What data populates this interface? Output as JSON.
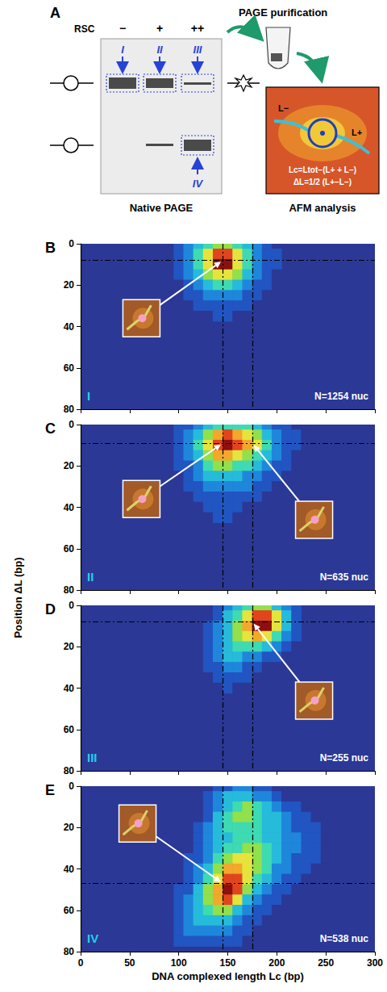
{
  "panel_a": {
    "letter": "A",
    "rsc": "RSC",
    "lanes": [
      "−",
      "+",
      "++"
    ],
    "bands": [
      "I",
      "II",
      "III",
      "IV"
    ],
    "purification": "PAGE purification",
    "gel_caption": "Native PAGE",
    "afm_caption": "AFM analysis",
    "afm_labels": [
      "L−",
      "L+"
    ],
    "formulas": [
      "Lc=Ltot−(L+ + L−)",
      "ΔL=1/2 (L+−L−)"
    ]
  },
  "ylabel": "Position ΔL (bp)",
  "chart_data": [
    {
      "type": "heatmap",
      "panel": "B",
      "lane": "I",
      "n_label": "N=1254 nuc",
      "tick_labels": "y",
      "xlim": [
        0,
        300
      ],
      "xticks": [
        0,
        50,
        100,
        150,
        200,
        250,
        300
      ],
      "ylim": [
        0,
        80
      ],
      "yticks": [
        0,
        20,
        40,
        60,
        80
      ],
      "guides": {
        "x": [
          145,
          175
        ],
        "y": 8
      },
      "zlim": [
        0,
        9
      ],
      "cells": {
        "x": [
          100,
          110,
          120,
          130,
          140,
          150,
          160,
          170,
          180,
          190,
          200
        ],
        "y": [
          0,
          5,
          10,
          15,
          20,
          25,
          30,
          35
        ],
        "z": [
          [
            1,
            2,
            3,
            4,
            5,
            5,
            4,
            3,
            2,
            1,
            0
          ],
          [
            1,
            2,
            4,
            6,
            8,
            8,
            6,
            4,
            2,
            1,
            1
          ],
          [
            1,
            2,
            4,
            6,
            9,
            9,
            6,
            4,
            2,
            1,
            1
          ],
          [
            1,
            2,
            3,
            5,
            6,
            6,
            5,
            3,
            2,
            1,
            0
          ],
          [
            0,
            1,
            2,
            3,
            4,
            4,
            3,
            2,
            1,
            1,
            0
          ],
          [
            0,
            1,
            1,
            2,
            2,
            2,
            2,
            1,
            1,
            0,
            0
          ],
          [
            0,
            0,
            1,
            1,
            1,
            1,
            1,
            1,
            0,
            0,
            0
          ],
          [
            0,
            0,
            0,
            0,
            1,
            1,
            0,
            0,
            0,
            0,
            0
          ]
        ]
      }
    },
    {
      "type": "heatmap",
      "panel": "C",
      "lane": "II",
      "n_label": "N=635 nuc",
      "tick_labels": "y",
      "xlim": [
        0,
        300
      ],
      "xticks": [
        0,
        50,
        100,
        150,
        200,
        250,
        300
      ],
      "ylim": [
        0,
        80
      ],
      "yticks": [
        0,
        20,
        40,
        60,
        80
      ],
      "guides": {
        "x": [
          145,
          175
        ],
        "y": 9
      },
      "zlim": [
        0,
        9
      ],
      "cells": {
        "x": [
          100,
          110,
          120,
          130,
          140,
          150,
          160,
          170,
          180,
          190,
          200,
          210,
          220,
          230
        ],
        "y": [
          0,
          5,
          10,
          15,
          20,
          25,
          30,
          35,
          40,
          45
        ],
        "z": [
          [
            1,
            1,
            2,
            3,
            4,
            4,
            4,
            4,
            3,
            2,
            1,
            1,
            0,
            0
          ],
          [
            1,
            2,
            3,
            5,
            7,
            8,
            7,
            6,
            5,
            3,
            2,
            1,
            1,
            0
          ],
          [
            1,
            2,
            4,
            6,
            8,
            9,
            8,
            7,
            6,
            4,
            2,
            1,
            1,
            0
          ],
          [
            1,
            2,
            3,
            5,
            7,
            7,
            6,
            5,
            4,
            3,
            2,
            1,
            0,
            0
          ],
          [
            1,
            1,
            2,
            4,
            5,
            5,
            4,
            4,
            3,
            2,
            1,
            1,
            0,
            0
          ],
          [
            0,
            1,
            2,
            3,
            3,
            3,
            3,
            2,
            2,
            1,
            1,
            0,
            0,
            0
          ],
          [
            0,
            1,
            1,
            2,
            2,
            2,
            2,
            2,
            1,
            1,
            0,
            0,
            0,
            0
          ],
          [
            0,
            0,
            1,
            1,
            1,
            1,
            1,
            1,
            1,
            0,
            0,
            0,
            0,
            0
          ],
          [
            0,
            0,
            0,
            1,
            1,
            1,
            1,
            0,
            0,
            0,
            0,
            0,
            0,
            0
          ],
          [
            0,
            0,
            0,
            0,
            1,
            1,
            0,
            0,
            0,
            0,
            0,
            0,
            0,
            0
          ]
        ]
      }
    },
    {
      "type": "heatmap",
      "panel": "D",
      "lane": "III",
      "n_label": "N=255 nuc",
      "tick_labels": "y",
      "xlim": [
        0,
        300
      ],
      "xticks": [
        0,
        50,
        100,
        150,
        200,
        250,
        300
      ],
      "ylim": [
        0,
        80
      ],
      "yticks": [
        0,
        20,
        40,
        60,
        80
      ],
      "guides": {
        "x": [
          145,
          175
        ],
        "y": 8
      },
      "zlim": [
        0,
        9
      ],
      "cells": {
        "x": [
          130,
          140,
          150,
          160,
          170,
          180,
          190,
          200,
          210,
          220
        ],
        "y": [
          0,
          5,
          10,
          15,
          20,
          25,
          30,
          35,
          40
        ],
        "z": [
          [
            0,
            1,
            2,
            3,
            4,
            5,
            5,
            3,
            2,
            1
          ],
          [
            0,
            1,
            3,
            4,
            6,
            8,
            8,
            6,
            3,
            1
          ],
          [
            1,
            2,
            3,
            5,
            7,
            9,
            9,
            6,
            3,
            1
          ],
          [
            1,
            2,
            3,
            5,
            6,
            7,
            6,
            4,
            2,
            1
          ],
          [
            1,
            2,
            3,
            4,
            4,
            4,
            3,
            2,
            1,
            0
          ],
          [
            1,
            2,
            3,
            3,
            2,
            2,
            1,
            1,
            0,
            0
          ],
          [
            1,
            1,
            2,
            2,
            1,
            1,
            0,
            0,
            0,
            0
          ],
          [
            0,
            1,
            1,
            1,
            1,
            0,
            0,
            0,
            0,
            0
          ],
          [
            0,
            0,
            1,
            0,
            0,
            0,
            0,
            0,
            0,
            0
          ]
        ]
      }
    },
    {
      "type": "heatmap",
      "panel": "E",
      "lane": "IV",
      "n_label": "N=538 nuc",
      "xlabel": "DNA complexed length Lc (bp)",
      "xlim": [
        0,
        300
      ],
      "xticks": [
        0,
        50,
        100,
        150,
        200,
        250,
        300
      ],
      "ylim": [
        0,
        80
      ],
      "yticks": [
        0,
        20,
        40,
        60,
        80
      ],
      "guides": {
        "x": [
          145,
          175
        ],
        "y": 47
      },
      "zlim": [
        0,
        9
      ],
      "cells": {
        "x": [
          90,
          100,
          110,
          120,
          130,
          140,
          150,
          160,
          170,
          180,
          190,
          200,
          210,
          220,
          230,
          240,
          250
        ],
        "y": [
          0,
          5,
          10,
          15,
          20,
          25,
          30,
          35,
          40,
          45,
          50,
          55,
          60,
          65,
          70,
          75
        ],
        "z": [
          [
            0,
            0,
            0,
            0,
            0,
            1,
            1,
            2,
            2,
            1,
            1,
            0,
            0,
            0,
            0,
            0,
            0
          ],
          [
            0,
            0,
            0,
            0,
            1,
            2,
            3,
            3,
            3,
            2,
            2,
            1,
            0,
            0,
            0,
            0,
            0
          ],
          [
            0,
            0,
            0,
            0,
            1,
            2,
            3,
            4,
            5,
            4,
            3,
            2,
            1,
            1,
            0,
            0,
            0
          ],
          [
            0,
            0,
            0,
            0,
            1,
            3,
            4,
            5,
            5,
            4,
            3,
            3,
            2,
            1,
            1,
            0,
            0
          ],
          [
            0,
            0,
            0,
            1,
            2,
            3,
            4,
            4,
            4,
            4,
            3,
            3,
            2,
            1,
            1,
            1,
            0
          ],
          [
            0,
            0,
            0,
            1,
            2,
            3,
            3,
            4,
            4,
            4,
            3,
            3,
            2,
            2,
            1,
            1,
            0
          ],
          [
            0,
            0,
            0,
            1,
            2,
            3,
            4,
            4,
            5,
            5,
            4,
            3,
            2,
            2,
            1,
            1,
            0
          ],
          [
            0,
            0,
            1,
            1,
            2,
            4,
            5,
            6,
            6,
            5,
            4,
            3,
            2,
            1,
            1,
            1,
            0
          ],
          [
            0,
            0,
            1,
            2,
            3,
            5,
            7,
            7,
            6,
            5,
            4,
            2,
            2,
            1,
            1,
            0,
            0
          ],
          [
            0,
            0,
            1,
            2,
            4,
            6,
            8,
            8,
            6,
            4,
            3,
            2,
            1,
            1,
            0,
            0,
            0
          ],
          [
            0,
            1,
            1,
            3,
            5,
            7,
            9,
            8,
            5,
            3,
            2,
            1,
            1,
            0,
            0,
            0,
            0
          ],
          [
            0,
            1,
            2,
            3,
            5,
            7,
            8,
            6,
            3,
            2,
            1,
            1,
            0,
            0,
            0,
            0,
            0
          ],
          [
            0,
            1,
            2,
            3,
            4,
            5,
            5,
            3,
            2,
            1,
            1,
            0,
            0,
            0,
            0,
            0,
            0
          ],
          [
            0,
            1,
            2,
            3,
            3,
            3,
            3,
            2,
            1,
            1,
            0,
            0,
            0,
            0,
            0,
            0,
            0
          ],
          [
            0,
            1,
            2,
            2,
            2,
            2,
            2,
            1,
            1,
            0,
            0,
            0,
            0,
            0,
            0,
            0,
            0
          ],
          [
            0,
            1,
            1,
            1,
            1,
            1,
            1,
            1,
            0,
            0,
            0,
            0,
            0,
            0,
            0,
            0,
            0
          ]
        ]
      }
    }
  ]
}
